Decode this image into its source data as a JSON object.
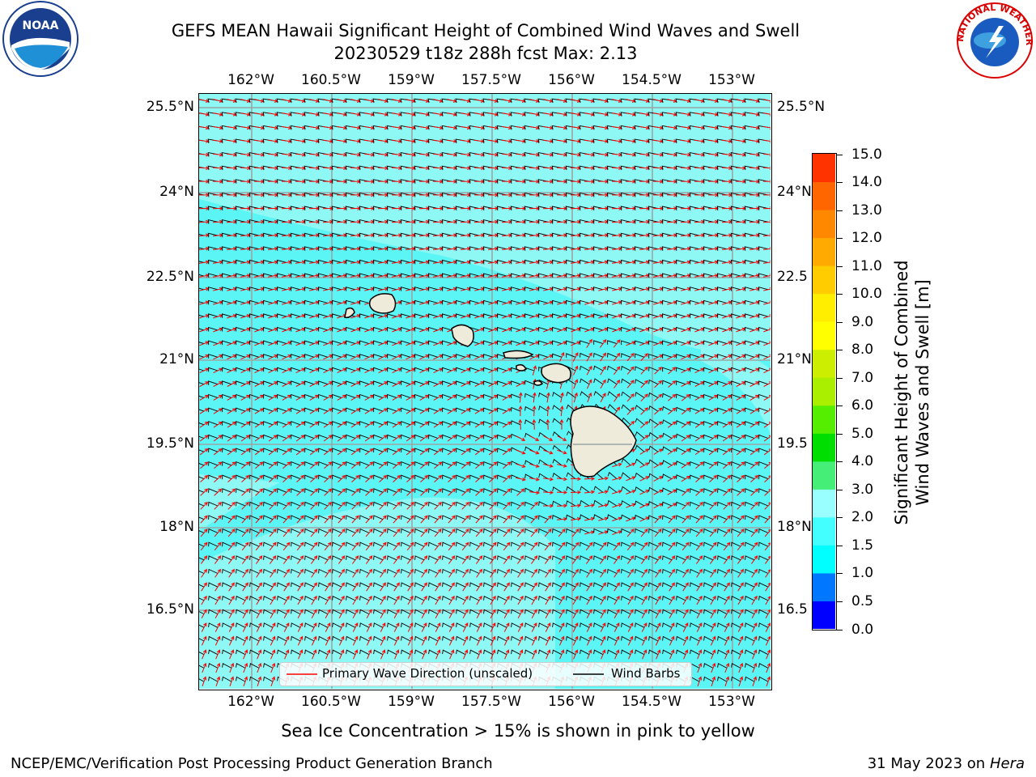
{
  "title": {
    "line1": "GEFS MEAN Hawaii Significant Height of Combined Wind Waves and Swell",
    "line2": "20230529 t18z 288h fcst   Max: 2.13"
  },
  "map": {
    "lon_labels": [
      "162°W",
      "160.5°W",
      "159°W",
      "157.5°W",
      "156°W",
      "154.5°W",
      "153°W"
    ],
    "lat_labels_left": [
      "25.5°N",
      "24°N",
      "22.5°N",
      "21°N",
      "19.5°N",
      "18°N",
      "16.5°N"
    ],
    "lat_labels_right": [
      "25.5°N",
      "24°N",
      "22.5",
      "21°N",
      "19.5",
      "18°N",
      "16.5"
    ],
    "ocean_color": "#5cf5f5",
    "land_color": "#efebdb",
    "wave_arrow_color": "#ff0000",
    "wind_barb_color": "#000000"
  },
  "legend": {
    "wave_label": "Primary Wave Direction (unscaled)",
    "wind_label": "Wind Barbs"
  },
  "colorbar": {
    "title_line1": "Significant Height of Combined",
    "title_line2": "Wind Waves and Swell [m]",
    "ticks": [
      "0.0",
      "0.5",
      "1.0",
      "1.5",
      "2.0",
      "3.0",
      "4.0",
      "5.0",
      "6.0",
      "7.0",
      "8.0",
      "9.0",
      "10.0",
      "11.0",
      "12.0",
      "13.0",
      "14.0",
      "15.0"
    ],
    "colors": [
      "#0000ff",
      "#0077ff",
      "#00ffff",
      "#44ffff",
      "#99ffff",
      "#44ee77",
      "#00dd00",
      "#55ee00",
      "#aaee00",
      "#ccee00",
      "#ffff00",
      "#ffee00",
      "#ffcc00",
      "#ffaa00",
      "#ff8800",
      "#ff6600",
      "#ff3300",
      "#ff0000"
    ]
  },
  "note": "Sea Ice Concentration > 15% is shown in pink to yellow",
  "footer": {
    "left": "NCEP/EMC/Verification Post Processing Product Generation Branch",
    "right_prefix": "31 May 2023 on",
    "right_host": "Hera"
  },
  "logos": {
    "noaa_text": "NOAA",
    "nws_text": "NATIONAL WEATHER SERVICE"
  }
}
